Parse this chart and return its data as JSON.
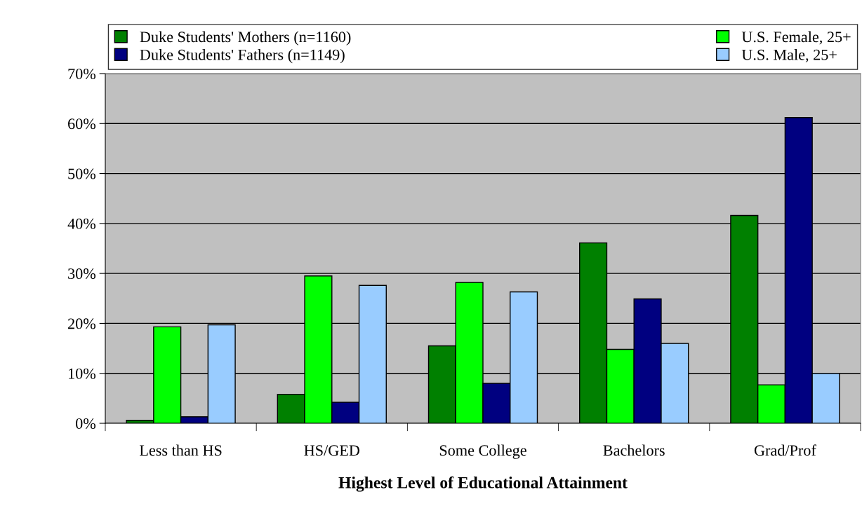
{
  "chart_data": {
    "type": "bar",
    "xlabel": "Highest Level of Educational Attainment",
    "categories": [
      "Less than HS",
      "HS/GED",
      "Some College",
      "Bachelors",
      "Grad/Prof"
    ],
    "series": [
      {
        "name": "Duke Students' Mothers (n=1160)",
        "color": "#008000",
        "values": [
          0.6,
          5.8,
          15.5,
          36.1,
          41.6
        ]
      },
      {
        "name": "U.S. Female, 25+",
        "color": "#00ff00",
        "values": [
          19.3,
          29.5,
          28.2,
          14.8,
          7.7
        ]
      },
      {
        "name": "Duke Students' Fathers (n=1149)",
        "color": "#000080",
        "values": [
          1.3,
          4.2,
          8.0,
          24.9,
          61.2
        ]
      },
      {
        "name": "U.S. Male, 25+",
        "color": "#99ccff",
        "values": [
          19.7,
          27.6,
          26.3,
          16.0,
          10.0
        ]
      }
    ],
    "ylim": [
      0,
      70
    ],
    "yticks": [
      {
        "value": 0,
        "label": "0%"
      },
      {
        "value": 10,
        "label": "10%"
      },
      {
        "value": 20,
        "label": "20%"
      },
      {
        "value": 30,
        "label": "30%"
      },
      {
        "value": 40,
        "label": "40%"
      },
      {
        "value": 50,
        "label": "50%"
      },
      {
        "value": 60,
        "label": "60%"
      },
      {
        "value": 70,
        "label": "70%"
      }
    ],
    "grid": "y",
    "legend": "top"
  }
}
